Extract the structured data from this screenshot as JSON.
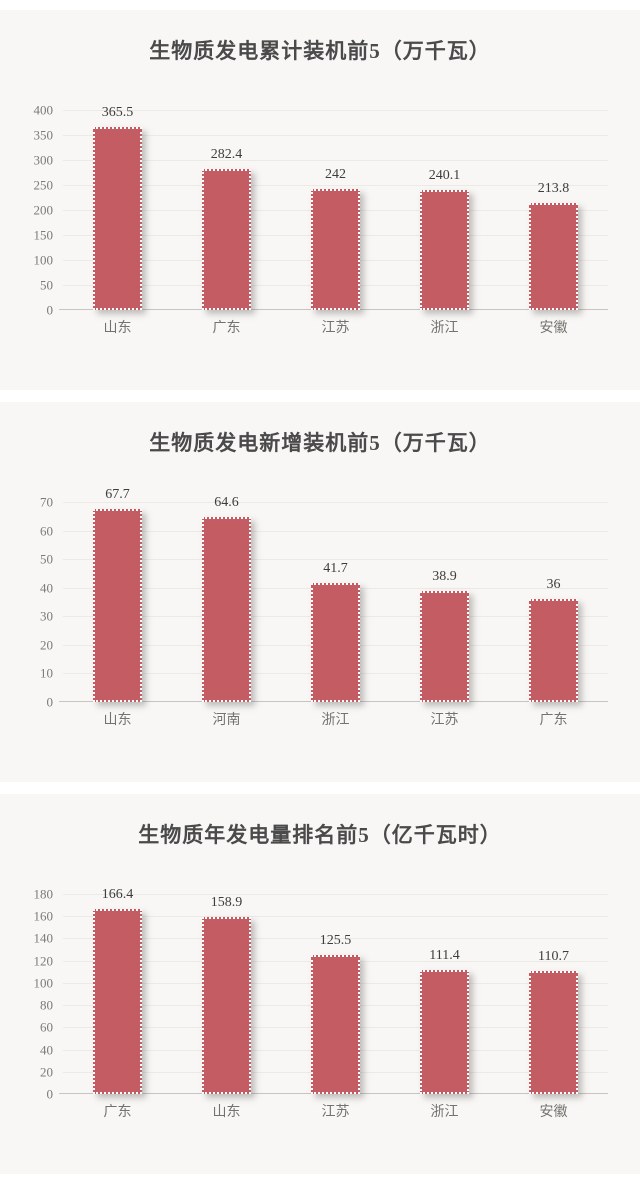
{
  "style": {
    "bar_fill": "#c45d63",
    "panel_background": "#f8f7f5",
    "page_background": "#ffffff",
    "title_color": "#4a4a4a"
  },
  "chart_data": [
    {
      "type": "bar",
      "title": "生物质发电累计装机前5（万千瓦）",
      "categories": [
        "山东",
        "广东",
        "江苏",
        "浙江",
        "安徽"
      ],
      "values": [
        365.5,
        282.4,
        242,
        240.1,
        213.8
      ],
      "value_labels": [
        "365.5",
        "282.4",
        "242",
        "240.1",
        "213.8"
      ],
      "xlabel": "",
      "ylabel": "",
      "ylim": [
        0,
        400
      ],
      "ytick_step": 50,
      "grid": true,
      "legend": "none"
    },
    {
      "type": "bar",
      "title": "生物质发电新增装机前5（万千瓦）",
      "categories": [
        "山东",
        "河南",
        "浙江",
        "江苏",
        "广东"
      ],
      "values": [
        67.7,
        64.6,
        41.7,
        38.9,
        36
      ],
      "value_labels": [
        "67.7",
        "64.6",
        "41.7",
        "38.9",
        "36"
      ],
      "xlabel": "",
      "ylabel": "",
      "ylim": [
        0,
        70
      ],
      "ytick_step": 10,
      "grid": true,
      "legend": "none"
    },
    {
      "type": "bar",
      "title": "生物质年发电量排名前5（亿千瓦时）",
      "categories": [
        "广东",
        "山东",
        "江苏",
        "浙江",
        "安徽"
      ],
      "values": [
        166.4,
        158.9,
        125.5,
        111.4,
        110.7
      ],
      "value_labels": [
        "166.4",
        "158.9",
        "125.5",
        "111.4",
        "110.7"
      ],
      "xlabel": "",
      "ylabel": "",
      "ylim": [
        0,
        180
      ],
      "ytick_step": 20,
      "grid": true,
      "legend": "none"
    }
  ]
}
